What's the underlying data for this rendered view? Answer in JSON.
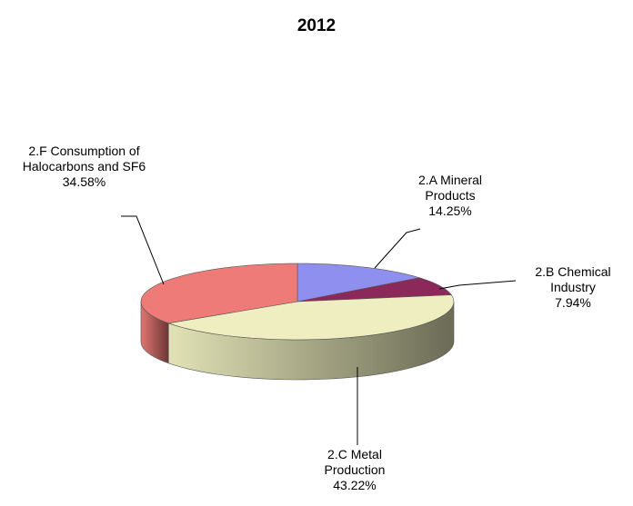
{
  "chart_data": {
    "type": "pie",
    "title": "2012",
    "categories": [
      "2.A Mineral Products",
      "2.B Chemical Industry",
      "2.C Metal Production",
      "2.F Consumption of Halocarbons and SF6"
    ],
    "values": [
      14.25,
      7.94,
      43.22,
      34.58
    ],
    "value_labels": [
      "14.25%",
      "7.94%",
      "43.22%",
      "34.58%"
    ],
    "colors": [
      "#8f8fef",
      "#8b2a5a",
      "#eeeec0",
      "#ee7b78"
    ]
  }
}
